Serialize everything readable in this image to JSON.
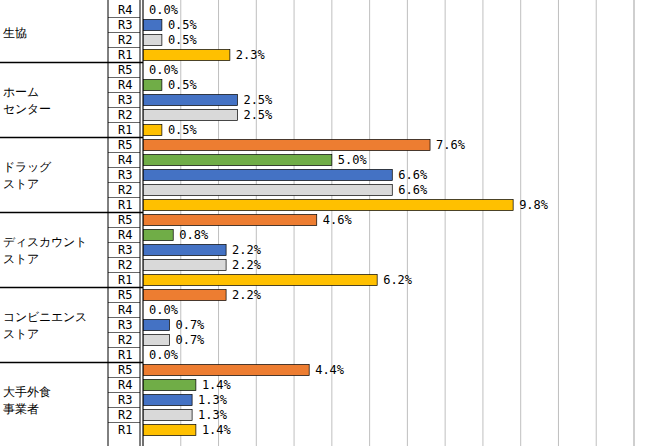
{
  "chart_data": {
    "type": "bar",
    "orientation": "horizontal",
    "categories": [
      "生協",
      "ホーム\nセンター",
      "ドラッグ\nストア",
      "ディスカウント\nストア",
      "コンビニエンス\nストア",
      "大手外食\n事業者"
    ],
    "series": [
      {
        "name": "R5",
        "color": "#ed7d31",
        "values": [
          null,
          0.0,
          7.6,
          4.6,
          2.2,
          4.4
        ],
        "value_labels": [
          null,
          "0.0%",
          "7.6%",
          "4.6%",
          "2.2%",
          "4.4%"
        ]
      },
      {
        "name": "R4",
        "color": "#70ad47",
        "values": [
          0.0,
          0.5,
          5.0,
          0.8,
          0.0,
          1.4
        ],
        "value_labels": [
          "0.0%",
          "0.5%",
          "5.0%",
          "0.8%",
          "0.0%",
          "1.4%"
        ]
      },
      {
        "name": "R3",
        "color": "#4472c4",
        "values": [
          0.5,
          2.5,
          6.6,
          2.2,
          0.7,
          1.3
        ],
        "value_labels": [
          "0.5%",
          "2.5%",
          "6.6%",
          "2.2%",
          "0.7%",
          "1.3%"
        ]
      },
      {
        "name": "R2",
        "color": "#d9d9d9",
        "values": [
          0.5,
          2.5,
          6.6,
          2.2,
          0.7,
          1.3
        ],
        "value_labels": [
          "0.5%",
          "2.5%",
          "6.6%",
          "2.2%",
          "0.7%",
          "1.3%"
        ]
      },
      {
        "name": "R1",
        "color": "#ffc000",
        "values": [
          2.3,
          0.5,
          9.8,
          6.2,
          0.0,
          1.4
        ],
        "value_labels": [
          "2.3%",
          "0.5%",
          "9.8%",
          "6.2%",
          "0.0%",
          "1.4%"
        ]
      }
    ],
    "xlim": [
      0,
      13
    ],
    "xticks": [
      0,
      1,
      2,
      3,
      4,
      5,
      6,
      7,
      8,
      9,
      10,
      11,
      12,
      13
    ],
    "grid": true,
    "data_labels": true,
    "tick_labels": false
  }
}
